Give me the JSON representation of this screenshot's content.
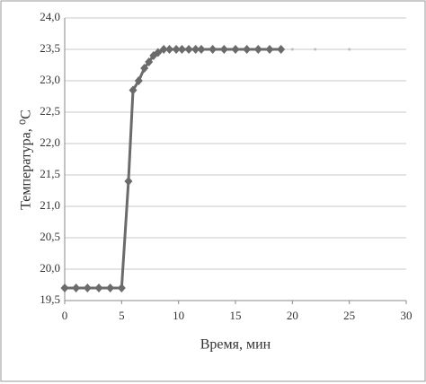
{
  "chart_data": {
    "type": "line",
    "x_label": "Время, мин",
    "y_label": "Температура, ⁰С",
    "x": [
      0,
      1,
      2,
      3,
      4,
      5,
      5.6,
      6,
      6.5,
      7,
      7.4,
      7.8,
      8.2,
      8.7,
      9.2,
      9.8,
      10.3,
      10.9,
      11.5,
      12,
      13,
      14,
      15,
      16,
      17,
      18,
      19,
      20,
      22,
      25
    ],
    "series": [
      {
        "color": "#6b6b6b",
        "marker": "diamond",
        "values": [
          19.7,
          19.7,
          19.7,
          19.7,
          19.7,
          19.7,
          21.4,
          22.85,
          23.0,
          23.2,
          23.3,
          23.4,
          23.45,
          23.5,
          23.5,
          23.5,
          23.5,
          23.5,
          23.5,
          23.5,
          23.5,
          23.5,
          23.5,
          23.5,
          23.5,
          23.5,
          23.5,
          null,
          null,
          null
        ]
      },
      {
        "color": "#bdbdbd",
        "marker": "dot",
        "values": [
          null,
          null,
          null,
          null,
          null,
          null,
          null,
          null,
          null,
          null,
          null,
          null,
          null,
          null,
          null,
          null,
          null,
          null,
          null,
          null,
          null,
          null,
          null,
          null,
          null,
          null,
          null,
          23.5,
          23.5,
          23.5
        ]
      }
    ],
    "xlim": [
      0,
      30
    ],
    "xticks": [
      0,
      5,
      10,
      15,
      20,
      25,
      30
    ],
    "ylim": [
      19.5,
      24.0
    ],
    "yticks": [
      {
        "value": 19.5,
        "label": "19,5"
      },
      {
        "value": 20.0,
        "label": "20,0"
      },
      {
        "value": 20.5,
        "label": "20,5"
      },
      {
        "value": 21.0,
        "label": "21,0"
      },
      {
        "value": 21.5,
        "label": "21,5"
      },
      {
        "value": 22.0,
        "label": "22,0"
      },
      {
        "value": 22.5,
        "label": "22,5"
      },
      {
        "value": 23.0,
        "label": "23,0"
      },
      {
        "value": 23.5,
        "label": "23,5"
      },
      {
        "value": 24.0,
        "label": "24,0"
      }
    ],
    "grid": true
  }
}
